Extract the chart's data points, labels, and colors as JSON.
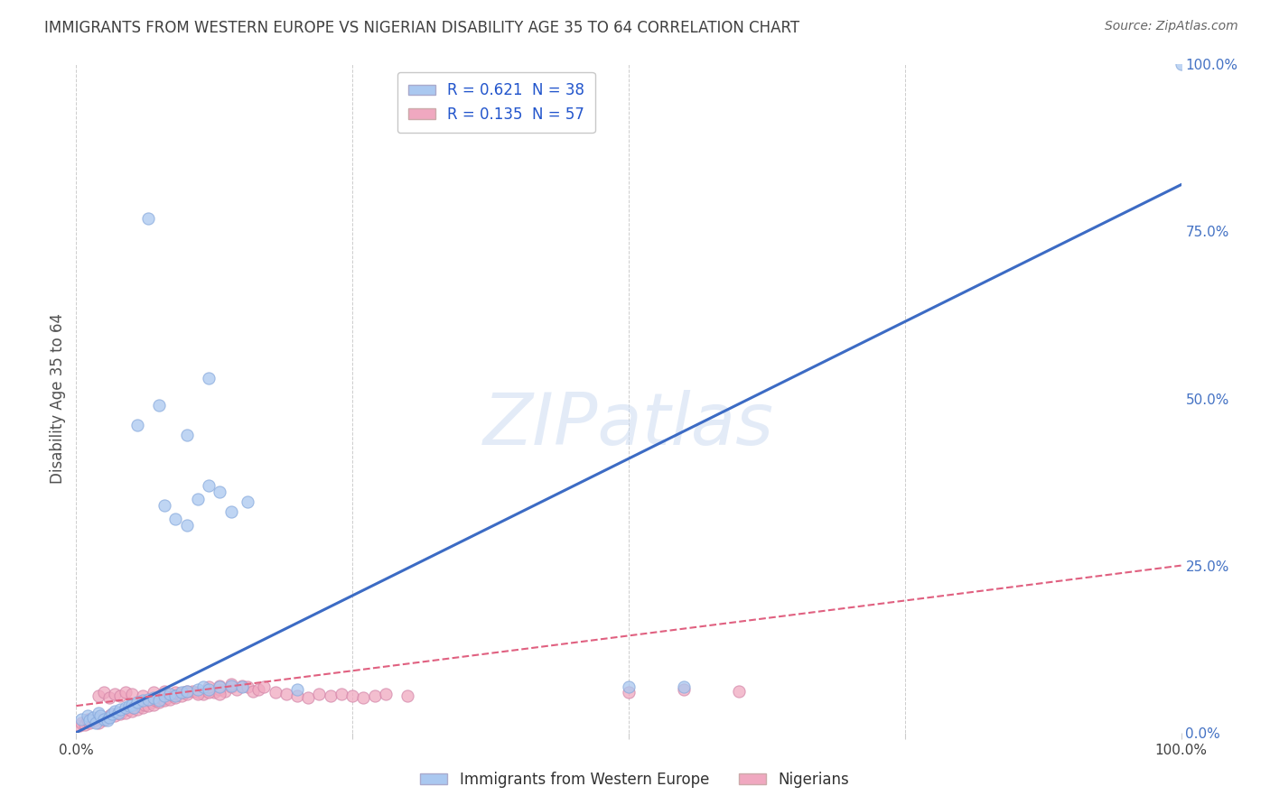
{
  "title": "IMMIGRANTS FROM WESTERN EUROPE VS NIGERIAN DISABILITY AGE 35 TO 64 CORRELATION CHART",
  "source": "Source: ZipAtlas.com",
  "ylabel": "Disability Age 35 to 64",
  "xlim": [
    0,
    1.0
  ],
  "ylim": [
    0,
    1.0
  ],
  "ytick_positions": [
    0.0,
    0.25,
    0.5,
    0.75,
    1.0
  ],
  "ytick_labels": [
    "0.0%",
    "25.0%",
    "50.0%",
    "75.0%",
    "100.0%"
  ],
  "watermark": "ZIPatlas",
  "blue_scatter": [
    [
      0.005,
      0.02
    ],
    [
      0.01,
      0.025
    ],
    [
      0.012,
      0.018
    ],
    [
      0.015,
      0.022
    ],
    [
      0.018,
      0.015
    ],
    [
      0.02,
      0.03
    ],
    [
      0.022,
      0.025
    ],
    [
      0.025,
      0.02
    ],
    [
      0.028,
      0.018
    ],
    [
      0.03,
      0.022
    ],
    [
      0.032,
      0.028
    ],
    [
      0.035,
      0.032
    ],
    [
      0.038,
      0.03
    ],
    [
      0.04,
      0.035
    ],
    [
      0.045,
      0.038
    ],
    [
      0.048,
      0.04
    ],
    [
      0.05,
      0.042
    ],
    [
      0.052,
      0.038
    ],
    [
      0.055,
      0.045
    ],
    [
      0.06,
      0.048
    ],
    [
      0.065,
      0.05
    ],
    [
      0.07,
      0.052
    ],
    [
      0.075,
      0.048
    ],
    [
      0.08,
      0.055
    ],
    [
      0.085,
      0.058
    ],
    [
      0.09,
      0.055
    ],
    [
      0.095,
      0.06
    ],
    [
      0.1,
      0.062
    ],
    [
      0.11,
      0.065
    ],
    [
      0.115,
      0.068
    ],
    [
      0.12,
      0.065
    ],
    [
      0.13,
      0.068
    ],
    [
      0.14,
      0.07
    ],
    [
      0.15,
      0.068
    ],
    [
      0.2,
      0.065
    ],
    [
      0.08,
      0.34
    ],
    [
      0.09,
      0.32
    ],
    [
      0.1,
      0.31
    ],
    [
      0.11,
      0.35
    ],
    [
      0.12,
      0.37
    ],
    [
      0.13,
      0.36
    ],
    [
      0.14,
      0.33
    ],
    [
      0.155,
      0.345
    ],
    [
      0.055,
      0.46
    ],
    [
      0.075,
      0.49
    ],
    [
      0.065,
      0.77
    ],
    [
      0.12,
      0.53
    ],
    [
      0.1,
      0.445
    ],
    [
      0.5,
      0.068
    ],
    [
      0.55,
      0.068
    ],
    [
      1.0,
      1.0
    ]
  ],
  "pink_scatter": [
    [
      0.003,
      0.01
    ],
    [
      0.005,
      0.015
    ],
    [
      0.008,
      0.012
    ],
    [
      0.01,
      0.018
    ],
    [
      0.012,
      0.015
    ],
    [
      0.015,
      0.02
    ],
    [
      0.018,
      0.018
    ],
    [
      0.02,
      0.022
    ],
    [
      0.022,
      0.02
    ],
    [
      0.025,
      0.018
    ],
    [
      0.028,
      0.022
    ],
    [
      0.03,
      0.025
    ],
    [
      0.032,
      0.028
    ],
    [
      0.035,
      0.025
    ],
    [
      0.038,
      0.03
    ],
    [
      0.04,
      0.028
    ],
    [
      0.042,
      0.032
    ],
    [
      0.045,
      0.03
    ],
    [
      0.048,
      0.035
    ],
    [
      0.05,
      0.032
    ],
    [
      0.052,
      0.038
    ],
    [
      0.055,
      0.035
    ],
    [
      0.058,
      0.04
    ],
    [
      0.06,
      0.038
    ],
    [
      0.062,
      0.042
    ],
    [
      0.065,
      0.04
    ],
    [
      0.068,
      0.045
    ],
    [
      0.07,
      0.042
    ],
    [
      0.072,
      0.048
    ],
    [
      0.075,
      0.045
    ],
    [
      0.078,
      0.05
    ],
    [
      0.08,
      0.048
    ],
    [
      0.082,
      0.052
    ],
    [
      0.085,
      0.05
    ],
    [
      0.088,
      0.055
    ],
    [
      0.09,
      0.052
    ],
    [
      0.092,
      0.058
    ],
    [
      0.095,
      0.055
    ],
    [
      0.098,
      0.06
    ],
    [
      0.1,
      0.058
    ],
    [
      0.105,
      0.062
    ],
    [
      0.11,
      0.06
    ],
    [
      0.115,
      0.058
    ],
    [
      0.12,
      0.062
    ],
    [
      0.125,
      0.06
    ],
    [
      0.13,
      0.065
    ],
    [
      0.135,
      0.062
    ],
    [
      0.14,
      0.068
    ],
    [
      0.145,
      0.065
    ],
    [
      0.15,
      0.07
    ],
    [
      0.155,
      0.068
    ],
    [
      0.16,
      0.062
    ],
    [
      0.165,
      0.065
    ],
    [
      0.17,
      0.068
    ],
    [
      0.02,
      0.055
    ],
    [
      0.025,
      0.06
    ],
    [
      0.03,
      0.052
    ],
    [
      0.035,
      0.058
    ],
    [
      0.04,
      0.055
    ],
    [
      0.045,
      0.06
    ],
    [
      0.05,
      0.058
    ],
    [
      0.06,
      0.055
    ],
    [
      0.07,
      0.06
    ],
    [
      0.08,
      0.062
    ],
    [
      0.09,
      0.06
    ],
    [
      0.1,
      0.062
    ],
    [
      0.11,
      0.058
    ],
    [
      0.12,
      0.06
    ],
    [
      0.13,
      0.058
    ],
    [
      0.01,
      0.02
    ],
    [
      0.015,
      0.018
    ],
    [
      0.02,
      0.015
    ],
    [
      0.18,
      0.06
    ],
    [
      0.19,
      0.058
    ],
    [
      0.2,
      0.055
    ],
    [
      0.21,
      0.052
    ],
    [
      0.22,
      0.058
    ],
    [
      0.23,
      0.055
    ],
    [
      0.24,
      0.058
    ],
    [
      0.25,
      0.055
    ],
    [
      0.26,
      0.052
    ],
    [
      0.27,
      0.055
    ],
    [
      0.28,
      0.058
    ],
    [
      0.3,
      0.055
    ],
    [
      0.12,
      0.068
    ],
    [
      0.13,
      0.07
    ],
    [
      0.14,
      0.072
    ],
    [
      0.5,
      0.06
    ],
    [
      0.55,
      0.065
    ],
    [
      0.6,
      0.062
    ]
  ],
  "blue_line": [
    [
      0.0,
      0.0
    ],
    [
      1.0,
      0.82
    ]
  ],
  "pink_line": [
    [
      0.0,
      0.04
    ],
    [
      1.0,
      0.25
    ]
  ],
  "blue_line_color": "#3c6bc4",
  "pink_line_color": "#e06080",
  "blue_scatter_color": "#aac8f0",
  "pink_scatter_color": "#f0a8c0",
  "blue_scatter_edge": "#88aadd",
  "pink_scatter_edge": "#d488aa",
  "background_color": "#ffffff",
  "grid_color": "#c8c8c8",
  "title_color": "#404040",
  "axis_label_color": "#505050",
  "watermark_color": "#c8d8f0",
  "legend_blue_color": "#aac8f0",
  "legend_pink_color": "#f0a8c0",
  "right_tick_color": "#4472c4",
  "source_color": "#666666"
}
